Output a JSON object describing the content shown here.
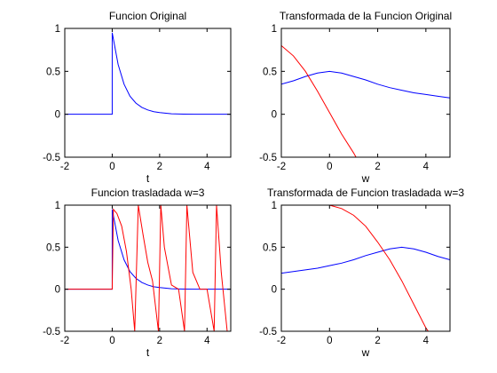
{
  "figure": {
    "background": "#ffffff",
    "axes_color": "#000000"
  },
  "series_colors": {
    "blue": "#0000ff",
    "red": "#ff0000"
  },
  "chart_data": [
    {
      "type": "line",
      "title": "Funcion Original",
      "xlabel": "t",
      "ylabel": "",
      "xlim": [
        -2,
        5
      ],
      "ylim": [
        -0.5,
        1
      ],
      "xticks": [
        -2,
        0,
        2,
        4
      ],
      "yticks": [
        -0.5,
        0,
        0.5,
        1
      ],
      "xticklabels": [
        "-2",
        "0",
        "2",
        "4"
      ],
      "yticklabels": [
        "-0.5",
        "0",
        "0.5",
        "1"
      ],
      "grid": false,
      "series": [
        {
          "color": "#0000ff",
          "x": [
            -2,
            0,
            0,
            0.25,
            0.5,
            0.75,
            1,
            1.25,
            1.5,
            1.75,
            2,
            2.5,
            3,
            3.5,
            4,
            5
          ],
          "y": [
            0,
            0,
            0.95,
            0.58,
            0.35,
            0.21,
            0.13,
            0.08,
            0.05,
            0.03,
            0.02,
            0.006,
            0.002,
            0.001,
            0,
            0
          ]
        }
      ]
    },
    {
      "type": "line",
      "title": "Transformada de la Funcion Original",
      "xlabel": "w",
      "ylabel": "",
      "xlim": [
        -2,
        5
      ],
      "ylim": [
        -0.5,
        1
      ],
      "xticks": [
        -2,
        0,
        2,
        4
      ],
      "yticks": [
        -0.5,
        0,
        0.5,
        1
      ],
      "xticklabels": [
        "-2",
        "0",
        "2",
        "4"
      ],
      "yticklabels": [
        "-0.5",
        "0",
        "0.5",
        "1"
      ],
      "grid": false,
      "series": [
        {
          "color": "#0000ff",
          "x": [
            -2,
            -1.5,
            -1,
            -0.5,
            0,
            0.5,
            1,
            1.5,
            2,
            2.5,
            3,
            3.5,
            4,
            4.5,
            5
          ],
          "y": [
            0.35,
            0.39,
            0.44,
            0.48,
            0.5,
            0.48,
            0.44,
            0.4,
            0.35,
            0.31,
            0.28,
            0.25,
            0.23,
            0.21,
            0.19
          ]
        },
        {
          "color": "#ff0000",
          "x": [
            -2,
            -1.5,
            -1,
            -0.5,
            0,
            0.5,
            1,
            1.1
          ],
          "y": [
            0.8,
            0.68,
            0.5,
            0.27,
            0.02,
            -0.23,
            -0.45,
            -0.5
          ]
        }
      ]
    },
    {
      "type": "line",
      "title": "Funcion trasladada w=3",
      "xlabel": "t",
      "ylabel": "",
      "xlim": [
        -2,
        5
      ],
      "ylim": [
        -0.5,
        1
      ],
      "xticks": [
        -2,
        0,
        2,
        4
      ],
      "yticks": [
        -0.5,
        0,
        0.5,
        1
      ],
      "xticklabels": [
        "-2",
        "0",
        "2",
        "4"
      ],
      "yticklabels": [
        "-0.5",
        "0",
        "0.5",
        "1"
      ],
      "grid": false,
      "series": [
        {
          "color": "#0000ff",
          "x": [
            -2,
            0,
            0,
            0.25,
            0.5,
            0.75,
            1,
            1.25,
            1.5,
            1.75,
            2,
            2.5,
            3,
            3.5,
            4,
            5
          ],
          "y": [
            0,
            0,
            0.95,
            0.58,
            0.35,
            0.21,
            0.13,
            0.08,
            0.05,
            0.03,
            0.02,
            0.006,
            0.002,
            0.001,
            0,
            0
          ]
        },
        {
          "color": "#ff0000",
          "x": [
            -2,
            0,
            0.05,
            0.2,
            0.4,
            0.6,
            0.8,
            0.95,
            1.1,
            1.3,
            1.5,
            1.7,
            1.95,
            2.05,
            2.2,
            2.5,
            2.8,
            3.05,
            3.15,
            3.4,
            3.7,
            4.0,
            4.3,
            4.4,
            4.6,
            4.85
          ],
          "y": [
            0,
            0,
            0.95,
            0.9,
            0.75,
            0.45,
            0.0,
            -0.5,
            1.0,
            0.65,
            0.32,
            0.1,
            -0.5,
            1.0,
            0.5,
            0.05,
            0.0,
            -0.5,
            1.0,
            0.2,
            0.0,
            0.0,
            -0.5,
            1.0,
            0.2,
            -0.5
          ]
        }
      ]
    },
    {
      "type": "line",
      "title": "Transformada  de Funcion trasladada w=3",
      "xlabel": "w",
      "ylabel": "",
      "xlim": [
        -2,
        5
      ],
      "ylim": [
        -0.5,
        1
      ],
      "xticks": [
        -2,
        0,
        2,
        4
      ],
      "yticks": [
        -0.5,
        0,
        0.5,
        1
      ],
      "xticklabels": [
        "-2",
        "0",
        "2",
        "4"
      ],
      "yticklabels": [
        "-0.5",
        "0",
        "0.5",
        "1"
      ],
      "grid": false,
      "series": [
        {
          "color": "#0000ff",
          "x": [
            -2,
            -1.5,
            -1,
            -0.5,
            0,
            0.5,
            1,
            1.5,
            2,
            2.5,
            3,
            3.5,
            4,
            4.5,
            5
          ],
          "y": [
            0.19,
            0.21,
            0.23,
            0.25,
            0.28,
            0.31,
            0.35,
            0.4,
            0.44,
            0.48,
            0.5,
            0.48,
            0.44,
            0.39,
            0.35
          ]
        },
        {
          "color": "#ff0000",
          "x": [
            0,
            0.5,
            1,
            1.5,
            2,
            2.5,
            3,
            3.5,
            4,
            4.1
          ],
          "y": [
            1.0,
            0.96,
            0.88,
            0.75,
            0.56,
            0.35,
            0.1,
            -0.18,
            -0.46,
            -0.5
          ]
        }
      ]
    }
  ]
}
